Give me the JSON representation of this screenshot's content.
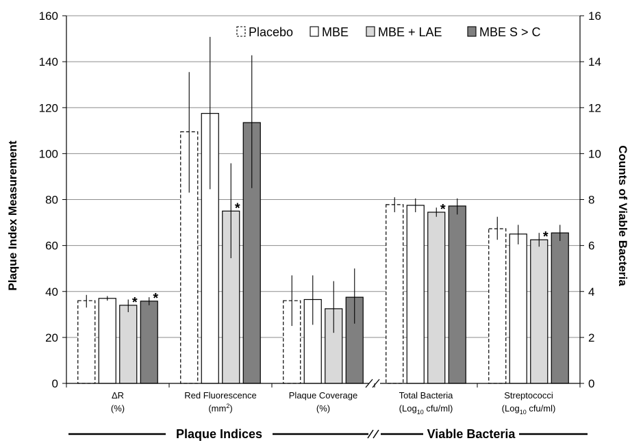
{
  "chart_data": {
    "type": "bar",
    "ylabel": "Plaque Index Measurement",
    "y2label": "Counts of Viable Bacteria",
    "ylim": [
      0,
      160
    ],
    "y2lim": [
      0,
      16
    ],
    "yticks": [
      "0",
      "20",
      "40",
      "60",
      "80",
      "100",
      "120",
      "140",
      "160"
    ],
    "y2ticks": [
      "0",
      "2",
      "4",
      "6",
      "8",
      "10",
      "12",
      "14",
      "16"
    ],
    "grid": true,
    "legend_position": "top-right",
    "categories": [
      {
        "line1": "ΔR",
        "line2": "(%)"
      },
      {
        "line1": "Red Fluorescence",
        "line2a": "(mm",
        "sup": "2",
        "line2b": ")"
      },
      {
        "line1": "Plaque Coverage",
        "line2": "(%)"
      },
      {
        "line1": "Total Bacteria",
        "line2a": "(Log",
        "sub": "10",
        "line2b": " cfu/ml)"
      },
      {
        "line1": "Streptococci",
        "line2a": "(Log",
        "sub": "10",
        "line2b": " cfu/ml)"
      }
    ],
    "series": [
      {
        "name": "Placebo",
        "style": "dashed",
        "fill": "#ffffff",
        "values": [
          36,
          109.5,
          36,
          77.8,
          67.3
        ],
        "err": [
          [
            33,
            38.5
          ],
          [
            83,
            135.5
          ],
          [
            25,
            47
          ],
          [
            74.5,
            81
          ],
          [
            62.5,
            72.5
          ]
        ]
      },
      {
        "name": "MBE",
        "style": "solid",
        "fill": "#ffffff",
        "values": [
          37,
          117.5,
          36.5,
          77.5,
          65
        ],
        "err": [
          [
            36,
            38
          ],
          [
            84.5,
            150.8
          ],
          [
            25.5,
            47
          ],
          [
            74.5,
            80.5
          ],
          [
            60.5,
            69
          ]
        ]
      },
      {
        "name": "MBE + LAE",
        "style": "solid",
        "fill": "#d9d9d9",
        "values": [
          34,
          75,
          32.5,
          74.5,
          62.5
        ],
        "err": [
          [
            31,
            36.5
          ],
          [
            54.5,
            95.8
          ],
          [
            22,
            44.5
          ],
          [
            72.5,
            76.5
          ],
          [
            59.5,
            65.5
          ]
        ]
      },
      {
        "name": "MBE S > C",
        "style": "solid",
        "fill": "#808080",
        "values": [
          35.8,
          113.5,
          37.5,
          77.2,
          65.5
        ],
        "err": [
          [
            34,
            37.5
          ],
          [
            85,
            142.8
          ],
          [
            26,
            50
          ],
          [
            73.5,
            80.5
          ],
          [
            62,
            69
          ]
        ]
      }
    ],
    "significant": [
      {
        "category": 0,
        "series": 2
      },
      {
        "category": 0,
        "series": 3
      },
      {
        "category": 1,
        "series": 2
      },
      {
        "category": 3,
        "series": 2
      },
      {
        "category": 4,
        "series": 2
      }
    ],
    "significance_symbol": "*",
    "groups": [
      {
        "label": "Plaque Indices",
        "categories": [
          0,
          1,
          2
        ]
      },
      {
        "label": "Viable Bacteria",
        "categories": [
          3,
          4
        ]
      }
    ],
    "axis_break_symbol": "//"
  }
}
